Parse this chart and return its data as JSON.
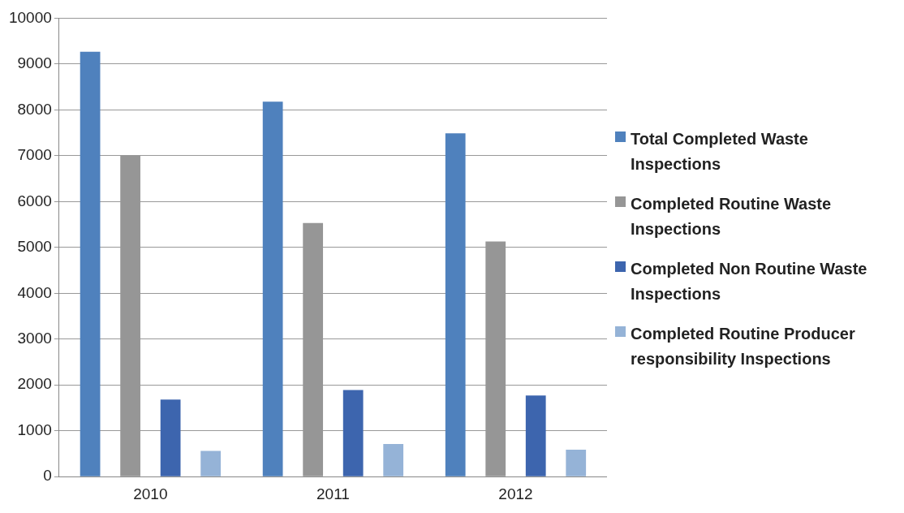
{
  "chart_data": {
    "type": "bar",
    "categories": [
      "2010",
      "2011",
      "2012"
    ],
    "series": [
      {
        "name": "Total Completed Waste Inspections",
        "color": "#4f81bd",
        "values": [
          9270,
          8180,
          7490
        ]
      },
      {
        "name": "Completed Routine Waste Inspections",
        "color": "#969696",
        "values": [
          7000,
          5530,
          5130
        ]
      },
      {
        "name": "Completed Non Routine Waste Inspections",
        "color": "#3d65ae",
        "values": [
          1680,
          1890,
          1770
        ]
      },
      {
        "name": "Completed Routine Producer responsibility Inspections",
        "color": "#95b3d7",
        "values": [
          560,
          710,
          590
        ]
      }
    ],
    "ylim": [
      0,
      10000
    ],
    "yticks": [
      0,
      1000,
      2000,
      3000,
      4000,
      5000,
      6000,
      7000,
      8000,
      9000,
      10000
    ],
    "grid": "y",
    "legend": "right"
  }
}
